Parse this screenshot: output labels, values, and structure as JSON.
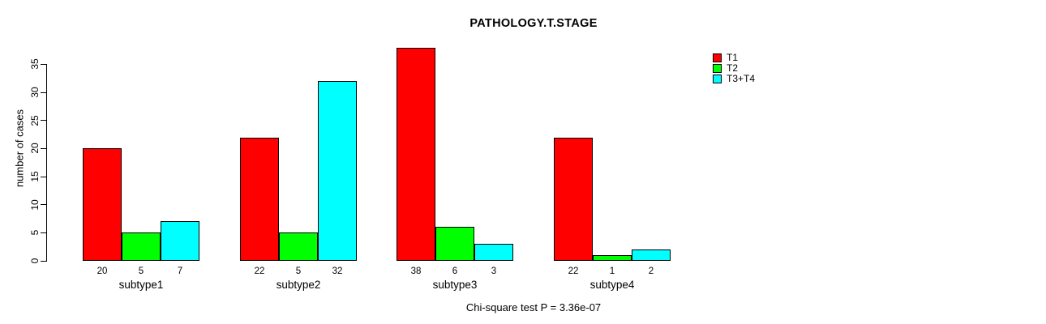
{
  "chart_data": {
    "type": "bar",
    "title": "PATHOLOGY.T.STAGE",
    "ylabel": "number of cases",
    "xlabel": "",
    "categories": [
      "subtype1",
      "subtype2",
      "subtype3",
      "subtype4"
    ],
    "series": [
      {
        "name": "T1",
        "color": "#FF0000",
        "values": [
          20,
          22,
          38,
          22
        ]
      },
      {
        "name": "T2",
        "color": "#00FF00",
        "values": [
          5,
          5,
          6,
          1
        ]
      },
      {
        "name": "T3+T4",
        "color": "#00FFFF",
        "values": [
          7,
          32,
          3,
          2
        ]
      }
    ],
    "bar_value_labels": [
      [
        "20",
        "5",
        "7"
      ],
      [
        "22",
        "5",
        "32"
      ],
      [
        "38",
        "6",
        "3"
      ],
      [
        "22",
        "1",
        "2"
      ]
    ],
    "yticks": [
      0,
      5,
      10,
      15,
      20,
      25,
      30,
      35
    ],
    "ylim": [
      0,
      35
    ],
    "grid": false,
    "legend_position": "top-right",
    "footnote": "Chi-square test P = 3.36e-07",
    "colors": {
      "background": "#ffffff",
      "axis": "#000000",
      "text": "#000000"
    }
  }
}
